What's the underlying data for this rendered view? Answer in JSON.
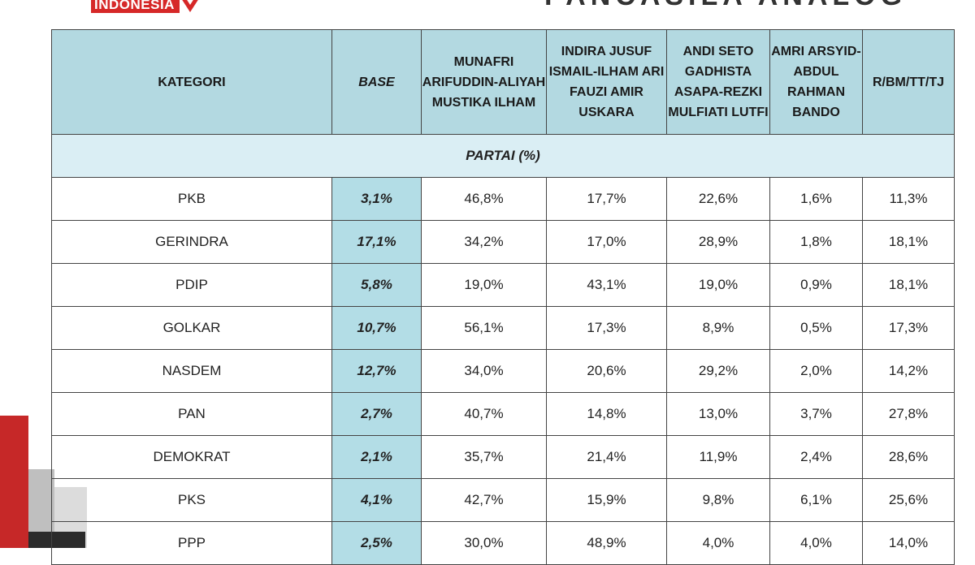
{
  "brand": {
    "logo_text": "INDONESIA",
    "header_text": "PANCASILA ANALOG"
  },
  "colors": {
    "header_bg": "#b3d9e1",
    "base_col_bg": "#b3dde6",
    "highlight": "#d32f2f",
    "brand_red": "#d62828"
  },
  "table": {
    "headers": [
      "KATEGORI",
      "BASE",
      "MUNAFRI ARIFUDDIN-ALIYAH MUSTIKA ILHAM",
      "INDIRA JUSUF ISMAIL-ILHAM ARI FAUZI AMIR USKARA",
      "ANDI SETO GADHISTA ASAPA-REZKI MULFIATI LUTFI",
      "AMRI ARSYID-ABDUL RAHMAN BANDO",
      "R/BM/TT/TJ"
    ],
    "section_label": "PARTAI (%)",
    "rows": [
      {
        "party": "PKB",
        "base": "3,1%",
        "c1": "46,8%",
        "c2": "17,7%",
        "c3": "22,6%",
        "c4": "1,6%",
        "c5": "11,3%",
        "highlight": "c1"
      },
      {
        "party": "GERINDRA",
        "base": "17,1%",
        "c1": "34,2%",
        "c2": "17,0%",
        "c3": "28,9%",
        "c4": "1,8%",
        "c5": "18,1%",
        "highlight": "c1"
      },
      {
        "party": "PDIP",
        "base": "5,8%",
        "c1": "19,0%",
        "c2": "43,1%",
        "c3": "19,0%",
        "c4": "0,9%",
        "c5": "18,1%",
        "highlight": "c2"
      },
      {
        "party": "GOLKAR",
        "base": "10,7%",
        "c1": "56,1%",
        "c2": "17,3%",
        "c3": "8,9%",
        "c4": "0,5%",
        "c5": "17,3%",
        "highlight": "c1"
      },
      {
        "party": "NASDEM",
        "base": "12,7%",
        "c1": "34,0%",
        "c2": "20,6%",
        "c3": "29,2%",
        "c4": "2,0%",
        "c5": "14,2%",
        "highlight": "c1"
      },
      {
        "party": "PAN",
        "base": "2,7%",
        "c1": "40,7%",
        "c2": "14,8%",
        "c3": "13,0%",
        "c4": "3,7%",
        "c5": "27,8%",
        "highlight": "c1"
      },
      {
        "party": "DEMOKRAT",
        "base": "2,1%",
        "c1": "35,7%",
        "c2": "21,4%",
        "c3": "11,9%",
        "c4": "2,4%",
        "c5": "28,6%",
        "highlight": "c1"
      },
      {
        "party": "PKS",
        "base": "4,1%",
        "c1": "42,7%",
        "c2": "15,9%",
        "c3": "9,8%",
        "c4": "6,1%",
        "c5": "25,6%",
        "highlight": "c1"
      },
      {
        "party": "PPP",
        "base": "2,5%",
        "c1": "30,0%",
        "c2": "48,9%",
        "c3": "4,0%",
        "c4": "4,0%",
        "c5": "14,0%",
        "highlight": "c2"
      }
    ]
  }
}
